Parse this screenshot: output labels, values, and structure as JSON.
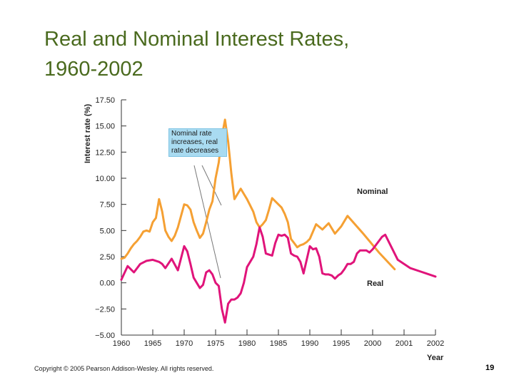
{
  "slide": {
    "title_line1": "Real and Nominal Interest Rates,",
    "title_line2": "1960-2002",
    "copyright": "Copyright © 2005 Pearson Addison-Wesley. All rights reserved.",
    "page_number": "19"
  },
  "chart_data": {
    "type": "line",
    "title": "",
    "xlabel": "Year",
    "ylabel": "Interest rate (%)",
    "ylim": [
      -5.0,
      17.5
    ],
    "y_ticks": [
      "17.50",
      "15.00",
      "12.50",
      "10.00",
      "7.50",
      "5.00",
      "2.50",
      "0.00",
      "−2.50",
      "−5.00"
    ],
    "y_tick_values": [
      17.5,
      15.0,
      12.5,
      10.0,
      7.5,
      5.0,
      2.5,
      0.0,
      -2.5,
      -5.0
    ],
    "x_categories": [
      "1960",
      "1965",
      "1970",
      "1975",
      "1980",
      "1985",
      "1990",
      "1995",
      "2000",
      "2001",
      "2002"
    ],
    "colors": {
      "nominal": "#f5a033",
      "real": "#e0147a",
      "annotation_fill": "#a9dbf1"
    },
    "annotation": {
      "line1": "Nominal rate",
      "line2": "increases, real",
      "line3": "rate decreases"
    },
    "series": [
      {
        "name": "Nominal",
        "points": [
          [
            0,
            2.3
          ],
          [
            0.5,
            2.4
          ],
          [
            1,
            2.8
          ],
          [
            1.5,
            3.3
          ],
          [
            2,
            3.7
          ],
          [
            2.5,
            4.0
          ],
          [
            3,
            4.4
          ],
          [
            3.5,
            4.9
          ],
          [
            4,
            5.0
          ],
          [
            4.5,
            4.9
          ],
          [
            5,
            5.8
          ],
          [
            5.5,
            6.2
          ],
          [
            6,
            8.0
          ],
          [
            6.5,
            6.8
          ],
          [
            7,
            5.0
          ],
          [
            7.5,
            4.4
          ],
          [
            8,
            4.0
          ],
          [
            8.5,
            4.5
          ],
          [
            9,
            5.3
          ],
          [
            9.5,
            6.4
          ],
          [
            10,
            7.5
          ],
          [
            10.5,
            7.4
          ],
          [
            11,
            7.0
          ],
          [
            11.5,
            5.8
          ],
          [
            12,
            5.0
          ],
          [
            12.5,
            4.3
          ],
          [
            13,
            4.7
          ],
          [
            13.5,
            5.8
          ],
          [
            14,
            7.0
          ],
          [
            14.5,
            7.8
          ],
          [
            15,
            10.0
          ],
          [
            15.5,
            11.5
          ],
          [
            16,
            14.0
          ],
          [
            16.5,
            15.6
          ],
          [
            17,
            13.5
          ],
          [
            17.5,
            10.5
          ],
          [
            18,
            8.0
          ],
          [
            18.5,
            8.5
          ],
          [
            19,
            9.0
          ],
          [
            19.5,
            8.5
          ],
          [
            20,
            8.0
          ],
          [
            20.5,
            7.4
          ],
          [
            21,
            6.8
          ],
          [
            21.5,
            5.8
          ],
          [
            22,
            5.3
          ],
          [
            22.5,
            5.6
          ],
          [
            23,
            6.0
          ],
          [
            23.5,
            7.0
          ],
          [
            24,
            8.1
          ],
          [
            24.5,
            7.8
          ],
          [
            25,
            7.5
          ],
          [
            25.5,
            7.2
          ],
          [
            26,
            6.6
          ],
          [
            26.5,
            5.8
          ],
          [
            27,
            4.2
          ],
          [
            27.5,
            3.8
          ],
          [
            28,
            3.4
          ],
          [
            28.5,
            3.6
          ],
          [
            29,
            3.7
          ],
          [
            29.5,
            3.9
          ],
          [
            30,
            4.2
          ],
          [
            31,
            5.6
          ],
          [
            32,
            5.1
          ],
          [
            33,
            5.7
          ],
          [
            34,
            4.7
          ],
          [
            35,
            5.4
          ],
          [
            36,
            6.4
          ],
          [
            38.5,
            4.7
          ],
          [
            41,
            2.9
          ],
          [
            43.5,
            1.3
          ]
        ]
      },
      {
        "name": "Real",
        "points": [
          [
            0,
            0.3
          ],
          [
            1,
            1.6
          ],
          [
            2,
            1.0
          ],
          [
            3,
            1.8
          ],
          [
            4,
            2.1
          ],
          [
            5,
            2.2
          ],
          [
            6,
            2.0
          ],
          [
            6.5,
            1.8
          ],
          [
            7,
            1.4
          ],
          [
            8,
            2.3
          ],
          [
            9,
            1.2
          ],
          [
            10,
            3.5
          ],
          [
            10.5,
            3.0
          ],
          [
            11,
            1.8
          ],
          [
            11.5,
            0.5
          ],
          [
            12,
            0.0
          ],
          [
            12.5,
            -0.5
          ],
          [
            13,
            -0.2
          ],
          [
            13.5,
            1.0
          ],
          [
            14,
            1.2
          ],
          [
            14.5,
            0.8
          ],
          [
            15,
            0.0
          ],
          [
            15.5,
            -0.3
          ],
          [
            16,
            -2.5
          ],
          [
            16.5,
            -3.8
          ],
          [
            17,
            -2.0
          ],
          [
            17.5,
            -1.6
          ],
          [
            18,
            -1.6
          ],
          [
            18.5,
            -1.4
          ],
          [
            19,
            -1.0
          ],
          [
            19.5,
            0.0
          ],
          [
            20,
            1.5
          ],
          [
            20.5,
            2.0
          ],
          [
            21,
            2.5
          ],
          [
            21.5,
            3.7
          ],
          [
            22,
            5.3
          ],
          [
            22.5,
            4.4
          ],
          [
            23,
            2.8
          ],
          [
            23.5,
            2.7
          ],
          [
            24,
            2.6
          ],
          [
            24.5,
            3.8
          ],
          [
            25,
            4.6
          ],
          [
            25.5,
            4.5
          ],
          [
            26,
            4.6
          ],
          [
            26.5,
            4.3
          ],
          [
            27,
            2.8
          ],
          [
            27.5,
            2.6
          ],
          [
            28,
            2.5
          ],
          [
            28.5,
            2.0
          ],
          [
            29,
            0.9
          ],
          [
            29.5,
            2.2
          ],
          [
            30,
            3.5
          ],
          [
            30.5,
            3.2
          ],
          [
            31,
            3.3
          ],
          [
            31.5,
            2.5
          ],
          [
            32,
            0.9
          ],
          [
            32.5,
            0.8
          ],
          [
            33,
            0.8
          ],
          [
            33.5,
            0.7
          ],
          [
            34,
            0.4
          ],
          [
            34.5,
            0.7
          ],
          [
            35,
            0.9
          ],
          [
            35.5,
            1.3
          ],
          [
            36,
            1.8
          ],
          [
            36.5,
            1.8
          ],
          [
            37,
            2.0
          ],
          [
            37.5,
            2.8
          ],
          [
            38,
            3.1
          ],
          [
            38.5,
            3.1
          ],
          [
            39,
            3.1
          ],
          [
            39.5,
            2.9
          ],
          [
            40,
            3.2
          ],
          [
            40.5,
            3.6
          ],
          [
            41,
            4.0
          ],
          [
            41.5,
            4.4
          ],
          [
            42,
            4.6
          ],
          [
            44,
            2.2
          ],
          [
            46,
            1.4
          ],
          [
            47.5,
            1.1
          ],
          [
            50,
            0.6
          ]
        ]
      }
    ]
  }
}
